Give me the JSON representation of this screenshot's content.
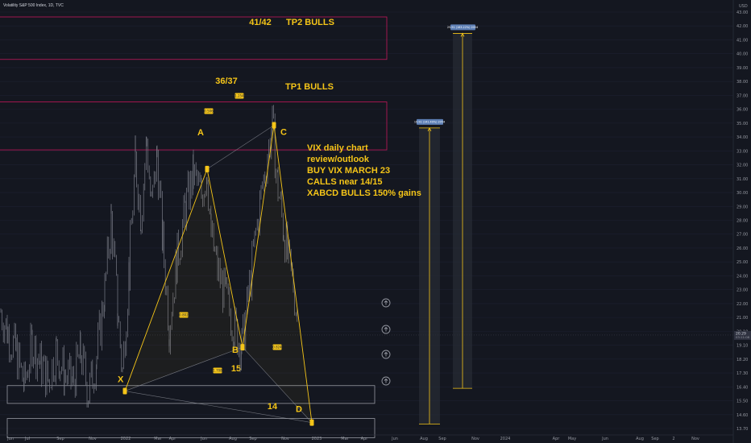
{
  "header": {
    "title": "Volatility S&P 500 Index, 1D, TVC"
  },
  "chart_data": {
    "type": "candlestick",
    "instrument": "Volatility S&P 500 Index, 1D, TVC",
    "x_ticks": [
      "Jun",
      "Jul",
      "Sep",
      "Nov",
      "2022",
      "Mar",
      "Apr",
      "Jun",
      "Aug",
      "Sep",
      "Nov",
      "2023",
      "Mar",
      "Apr",
      "Jun",
      "Aug",
      "Sep",
      "Nov",
      "2024",
      "Apr",
      "May",
      "Jun",
      "Aug",
      "Sep",
      "2",
      "Nov"
    ],
    "y_ticks": [
      "13.70",
      "14.60",
      "15.50",
      "16.40",
      "17.30",
      "18.20",
      "19.10",
      "20.10",
      "21.00",
      "22.00",
      "23.00",
      "24.00",
      "25.00",
      "26.00",
      "27.00",
      "28.00",
      "29.00",
      "30.00",
      "31.00",
      "32.00",
      "33.00",
      "34.00",
      "35.00",
      "36.00",
      "37.00",
      "38.00",
      "39.00",
      "40.00",
      "41.00",
      "42.00",
      "43.00",
      "USD"
    ],
    "price_label": {
      "value": "20.29",
      "sub": "03:11:08"
    },
    "ylim": [
      13.0,
      44.5
    ],
    "price_series": [
      {
        "x": 1,
        "y": 22.0
      },
      {
        "x": 10,
        "y": 20.5
      },
      {
        "x": 20,
        "y": 19.0
      },
      {
        "x": 30,
        "y": 16.6
      },
      {
        "x": 40,
        "y": 19.8
      },
      {
        "x": 50,
        "y": 18.2
      },
      {
        "x": 60,
        "y": 17.0
      },
      {
        "x": 70,
        "y": 19.2
      },
      {
        "x": 80,
        "y": 17.4
      },
      {
        "x": 90,
        "y": 16.8
      },
      {
        "x": 100,
        "y": 18.9
      },
      {
        "x": 110,
        "y": 16.1
      },
      {
        "x": 120,
        "y": 18.7
      },
      {
        "x": 130,
        "y": 23.5
      },
      {
        "x": 138,
        "y": 28.8
      },
      {
        "x": 146,
        "y": 22.0
      },
      {
        "x": 152,
        "y": 17.6
      },
      {
        "x": 160,
        "y": 25.0
      },
      {
        "x": 168,
        "y": 33.0
      },
      {
        "x": 175,
        "y": 29.0
      },
      {
        "x": 182,
        "y": 34.5
      },
      {
        "x": 188,
        "y": 29.5
      },
      {
        "x": 195,
        "y": 33.5
      },
      {
        "x": 202,
        "y": 27.0
      },
      {
        "x": 210,
        "y": 21.0
      },
      {
        "x": 220,
        "y": 26.0
      },
      {
        "x": 230,
        "y": 29.5
      },
      {
        "x": 240,
        "y": 32.0
      },
      {
        "x": 250,
        "y": 30.5
      },
      {
        "x": 257,
        "y": 32.5
      },
      {
        "x": 262,
        "y": 27.5
      },
      {
        "x": 270,
        "y": 25.0
      },
      {
        "x": 280,
        "y": 23.0
      },
      {
        "x": 290,
        "y": 21.0
      },
      {
        "x": 300,
        "y": 19.4
      },
      {
        "x": 308,
        "y": 23.0
      },
      {
        "x": 316,
        "y": 27.0
      },
      {
        "x": 324,
        "y": 30.5
      },
      {
        "x": 332,
        "y": 33.5
      },
      {
        "x": 338,
        "y": 35.5
      },
      {
        "x": 345,
        "y": 31.0
      },
      {
        "x": 352,
        "y": 28.0
      },
      {
        "x": 358,
        "y": 25.5
      },
      {
        "x": 364,
        "y": 24.0
      },
      {
        "x": 370,
        "y": 21.0
      }
    ],
    "pattern": {
      "name": "XABCD",
      "points": [
        {
          "label": "X",
          "value": 16.2
        },
        {
          "label": "A",
          "value": 32.4
        },
        {
          "label": "B",
          "value": 19.4
        },
        {
          "label": "C",
          "value": 35.6
        },
        {
          "label": "D",
          "value": 13.9
        }
      ],
      "ratios": [
        {
          "text": "0.802"
        },
        {
          "text": "1.254"
        },
        {
          "text": "0.824"
        },
        {
          "text": "1.708"
        },
        {
          "text": "0.506"
        }
      ]
    },
    "zones": [
      {
        "label": "41/42",
        "text": "TP2 BULLS",
        "from": 40.4,
        "to": 43.5
      },
      {
        "label": "36/37",
        "text": "TP1 BULLS",
        "from": 33.8,
        "to": 37.3
      },
      {
        "label": "15",
        "from": 15.3,
        "to": 16.6
      },
      {
        "label": "14",
        "from": 12.8,
        "to": 14.2
      }
    ],
    "projections": [
      {
        "label": "19.91 (141.40%) 2054",
        "from": 13.8,
        "to": 35.4
      },
      {
        "label": "25.91 (163.22%) 2054",
        "from": 16.4,
        "to": 42.3
      }
    ],
    "annotation": {
      "lines": [
        "VIX daily chart",
        "review/outlook",
        "BUY VIX MARCH 23",
        "CALLS near 14/15",
        "XABCD BULLS 150% gains"
      ]
    },
    "colors": {
      "pattern": "#f5c518",
      "zone_border": "#c2185b",
      "bg": "#141720",
      "candles": "#787b86"
    }
  }
}
